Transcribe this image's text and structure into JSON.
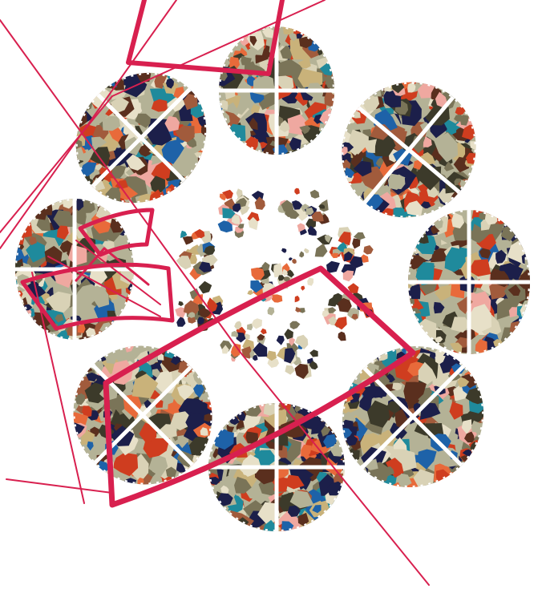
{
  "artwork": {
    "background": "#ffffff",
    "accent_line_color": "#d8204f",
    "gap_color": "#ffffff",
    "palette": [
      "#1c1f4a",
      "#7a7458",
      "#b4b296",
      "#d9d2b6",
      "#cf3d1f",
      "#e86a3a",
      "#1e62a8",
      "#1f8a9c",
      "#5a2f1e",
      "#e7e0c8",
      "#a15b3c",
      "#efa8a0",
      "#3c3a2a",
      "#c9b27a"
    ],
    "petal_count": 8,
    "inner_cluster_count": 8
  }
}
